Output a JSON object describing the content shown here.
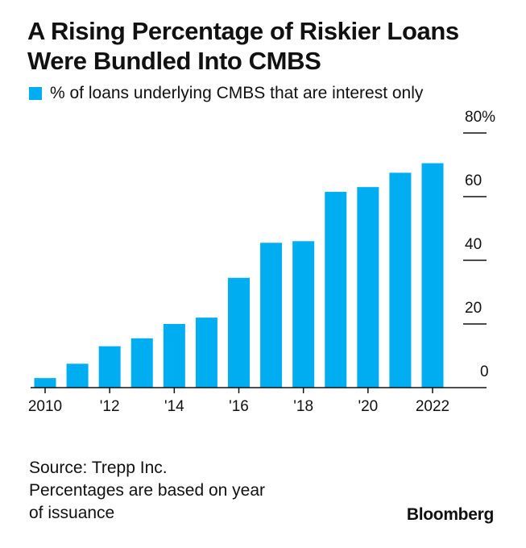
{
  "title_lines": [
    "A Rising Percentage of Riskier Loans",
    "Were Bundled Into CMBS"
  ],
  "legend": {
    "label": "% of loans underlying CMBS that are interest only",
    "color": "#00ADF1"
  },
  "chart_data": {
    "type": "bar",
    "x": [
      2010,
      2011,
      2012,
      2013,
      2014,
      2015,
      2016,
      2017,
      2018,
      2019,
      2020,
      2021,
      2022
    ],
    "values": [
      3,
      7.5,
      13,
      15.5,
      20,
      22,
      34.5,
      45.5,
      46,
      61.5,
      63,
      67.5,
      70.5
    ],
    "ylim": [
      0,
      80
    ],
    "y_ticks": [
      0,
      20,
      40,
      60,
      80
    ],
    "y_tick_labels": [
      "0",
      "20",
      "40",
      "60",
      "80%"
    ],
    "x_tick_labels": [
      {
        "x": 2010,
        "label": "2010"
      },
      {
        "x": 2012,
        "label": "'12"
      },
      {
        "x": 2014,
        "label": "'14"
      },
      {
        "x": 2016,
        "label": "'16"
      },
      {
        "x": 2018,
        "label": "'18"
      },
      {
        "x": 2020,
        "label": "'20"
      },
      {
        "x": 2022,
        "label": "2022"
      }
    ],
    "y_axis_side": "right",
    "bar_color": "#00ADF1",
    "grid": false
  },
  "footnotes": [
    "Source: Trepp Inc.",
    "Percentages are based on year",
    "of issuance"
  ],
  "brand": "Bloomberg"
}
